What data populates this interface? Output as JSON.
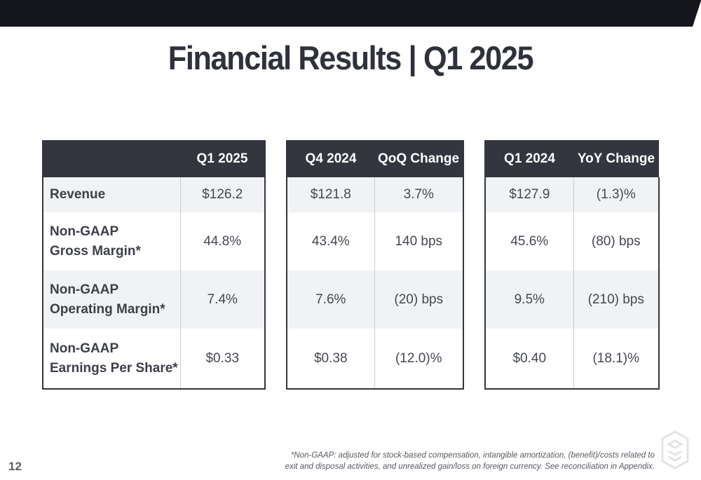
{
  "title": "Financial Results | Q1 2025",
  "table": {
    "headers": [
      "",
      "Q1 2025",
      "Q4 2024",
      "QoQ Change",
      "Q1 2024",
      "YoY Change"
    ],
    "rows": [
      {
        "label": [
          "Revenue"
        ],
        "q1_2025": "$126.2",
        "q4_2024": "$121.8",
        "qoq": "3.7%",
        "q1_2024": "$127.9",
        "yoy": "(1.3)%"
      },
      {
        "label": [
          "Non-GAAP",
          "Gross Margin*"
        ],
        "q1_2025": "44.8%",
        "q4_2024": "43.4%",
        "qoq": "140 bps",
        "q1_2024": "45.6%",
        "yoy": "(80) bps"
      },
      {
        "label": [
          "Non-GAAP",
          "Operating Margin*"
        ],
        "q1_2025": "7.4%",
        "q4_2024": "7.6%",
        "qoq": "(20) bps",
        "q1_2024": "9.5%",
        "yoy": "(210) bps"
      },
      {
        "label": [
          "Non-GAAP",
          "Earnings Per Share*"
        ],
        "q1_2025": "$0.33",
        "q4_2024": "$0.38",
        "qoq": "(12.0)%",
        "q1_2024": "$0.40",
        "yoy": "(18.1)%"
      }
    ]
  },
  "footnote": {
    "line1": "*Non-GAAP: adjusted for stock-based compensation, intangible amortization, (benefit)/costs related to",
    "line2": "exit and disposal activities, and unrealized gain/loss on foreign currency. See reconciliation in Appendix."
  },
  "page_number": "12",
  "colors": {
    "header_bg": "#33353f",
    "band": "#f1f2f3",
    "top_bar": "#15161b"
  }
}
